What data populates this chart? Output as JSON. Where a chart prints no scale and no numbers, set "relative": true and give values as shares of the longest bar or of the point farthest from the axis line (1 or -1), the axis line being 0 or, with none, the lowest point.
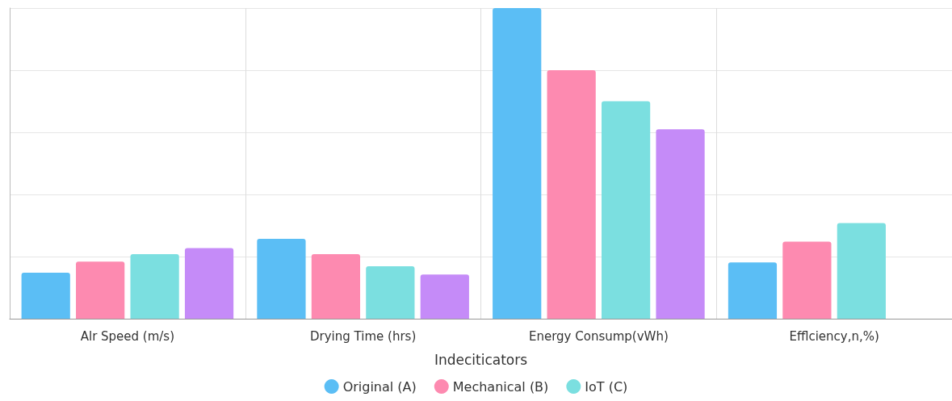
{
  "chart_data": {
    "type": "bar",
    "relative": true,
    "xlabel": "Indeciticators",
    "categories": [
      "Alr Speed (m/s)",
      "Drying Time (hrs)",
      "Energy Consump(vWh)",
      "Efflciency,n,%)"
    ],
    "series": [
      {
        "name": "Original (A)",
        "color": "#5bbef5",
        "values": [
          0.148,
          0.257,
          1,
          0.181
        ]
      },
      {
        "name": "Mechanical (B)",
        "color": "#fd8ab0",
        "values": [
          0.184,
          0.208,
          0.8,
          0.248
        ]
      },
      {
        "name": "IoT (C)",
        "color": "#7bdfe0",
        "values": [
          0.208,
          0.169,
          0.7,
          0.308
        ]
      },
      {
        "color": "#c58bf8",
        "values": [
          0.227,
          0.142,
          0.61,
          null
        ]
      }
    ],
    "grid": true,
    "legend": "bottom"
  }
}
